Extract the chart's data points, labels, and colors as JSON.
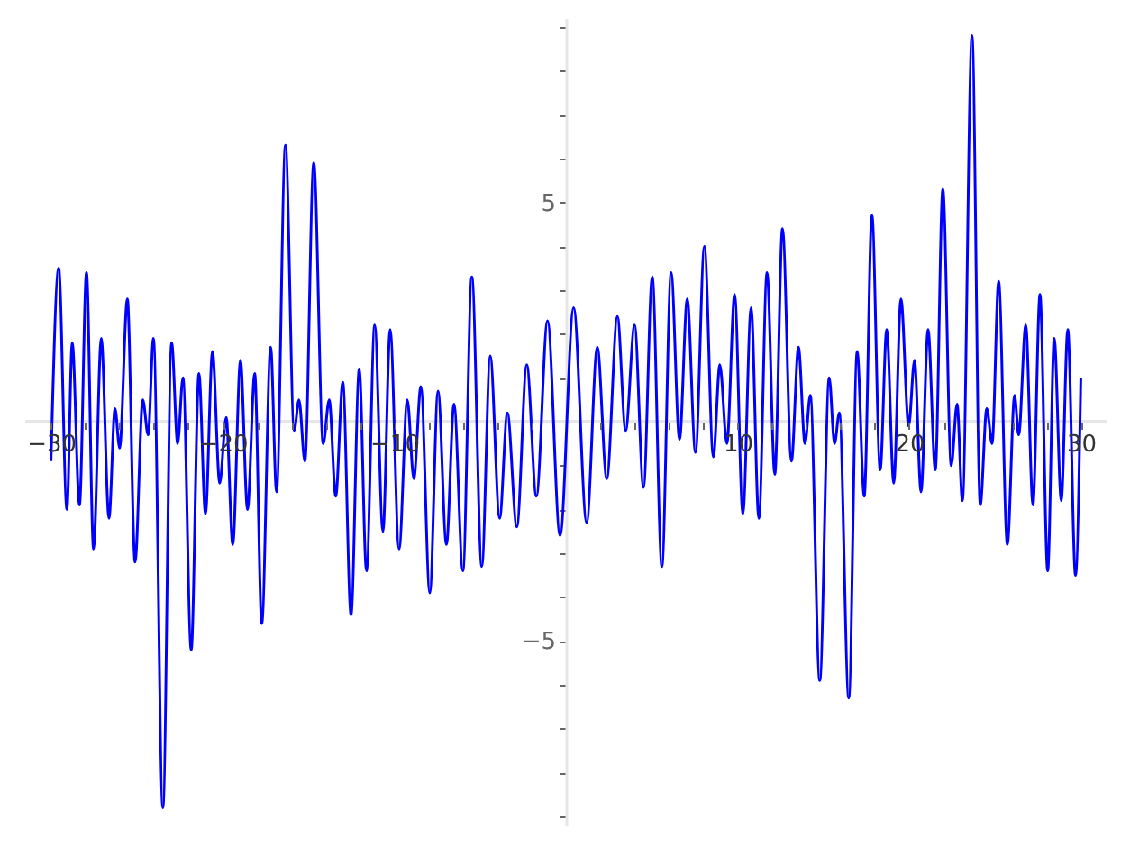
{
  "chart_data": {
    "type": "line",
    "x": [
      -30,
      -29.55,
      -29.07,
      -28.76,
      -28.34,
      -27.93,
      -27.52,
      -27.07,
      -26.62,
      -26.27,
      -26.0,
      -25.55,
      -25.1,
      -24.65,
      -24.34,
      -24.03,
      -23.48,
      -22.97,
      -22.62,
      -22.31,
      -21.83,
      -21.38,
      -21.0,
      -20.59,
      -20.17,
      -19.79,
      -19.41,
      -18.96,
      -18.55,
      -18.13,
      -17.72,
      -17.2,
      -16.86,
      -16.34,
      -15.83,
      -15.55,
      -15.21,
      -14.69,
      -14.14,
      -13.79,
      -13.41,
      -13.0,
      -12.52,
      -12.04,
      -11.62,
      -11.14,
      -10.66,
      -10.24,
      -9.72,
      -9.24,
      -8.86,
      -8.45,
      -7.93,
      -7.45,
      -6.96,
      -6.52,
      -6.0,
      -5.48,
      -4.9,
      -4.41,
      -3.86,
      -3.41,
      -2.86,
      -2.28,
      -1.72,
      -1.07,
      -0.34,
      0.45,
      1.21,
      1.83,
      2.38,
      3.0,
      3.48,
      4.0,
      4.52,
      5.03,
      5.59,
      6.13,
      6.62,
      7.07,
      7.55,
      8.07,
      8.59,
      8.97,
      9.38,
      9.83,
      10.31,
      10.79,
      11.24,
      11.72,
      12.17,
      12.62,
      13.14,
      13.55,
      13.93,
      14.24,
      14.79,
      15.34,
      15.65,
      15.93,
      16.48,
      16.97,
      17.38,
      17.83,
      18.31,
      18.69,
      19.1,
      19.52,
      19.97,
      20.31,
      20.69,
      21.1,
      21.52,
      21.96,
      22.45,
      22.79,
      23.1,
      23.66,
      24.14,
      24.52,
      24.83,
      25.21,
      25.72,
      26.14,
      26.38,
      26.79,
      27.21,
      27.62,
      28.07,
      28.45,
      28.86,
      29.24,
      29.69,
      30.0
    ],
    "series": [
      {
        "color": "#0000ff",
        "values": [
          -0.9,
          3.5,
          -2.0,
          1.8,
          -1.9,
          3.4,
          -2.9,
          1.9,
          -2.2,
          0.3,
          -0.6,
          2.8,
          -3.2,
          0.5,
          -0.3,
          1.9,
          -8.8,
          1.8,
          -0.5,
          1.0,
          -5.2,
          1.1,
          -2.1,
          1.6,
          -1.4,
          0.1,
          -2.8,
          1.4,
          -2.0,
          1.1,
          -4.6,
          1.7,
          -1.6,
          6.3,
          -0.2,
          0.5,
          -0.9,
          5.9,
          -0.5,
          0.5,
          -1.7,
          0.9,
          -4.4,
          1.2,
          -3.4,
          2.2,
          -2.5,
          2.1,
          -2.9,
          0.5,
          -1.3,
          0.8,
          -3.9,
          0.7,
          -2.8,
          0.4,
          -3.4,
          3.3,
          -3.3,
          1.5,
          -2.2,
          0.2,
          -2.4,
          1.3,
          -1.7,
          2.3,
          -2.6,
          2.6,
          -2.3,
          1.7,
          -1.3,
          2.4,
          -0.2,
          2.2,
          -1.5,
          3.3,
          -3.3,
          3.4,
          -0.4,
          2.8,
          -0.7,
          4.0,
          -0.8,
          1.3,
          -0.5,
          2.9,
          -2.1,
          2.6,
          -2.2,
          3.4,
          -1.2,
          4.4,
          -0.9,
          1.7,
          -0.5,
          0.6,
          -5.9,
          1.0,
          -0.5,
          0.2,
          -6.3,
          1.6,
          -1.7,
          4.7,
          -1.1,
          2.1,
          -1.4,
          2.8,
          -0.1,
          1.4,
          -1.6,
          2.1,
          -1.1,
          5.3,
          -1.0,
          0.4,
          -1.8,
          8.8,
          -1.9,
          0.3,
          -0.5,
          3.2,
          -2.8,
          0.6,
          -0.3,
          2.2,
          -1.9,
          2.9,
          -3.4,
          1.9,
          -1.8,
          2.1,
          -3.5,
          1.0
        ]
      }
    ],
    "xlim": [
      -31.5,
      31.5
    ],
    "ylim": [
      -9.2,
      9.2
    ],
    "xticks": [
      {
        "value": -30,
        "label": "−30"
      },
      {
        "value": -28,
        "label": null
      },
      {
        "value": -26,
        "label": null
      },
      {
        "value": -24,
        "label": null
      },
      {
        "value": -22,
        "label": null
      },
      {
        "value": -20,
        "label": "−20"
      },
      {
        "value": -18,
        "label": null
      },
      {
        "value": -16,
        "label": null
      },
      {
        "value": -14,
        "label": null
      },
      {
        "value": -12,
        "label": null
      },
      {
        "value": -10,
        "label": "−10"
      },
      {
        "value": -8,
        "label": null
      },
      {
        "value": -6,
        "label": null
      },
      {
        "value": -4,
        "label": null
      },
      {
        "value": -2,
        "label": null
      },
      {
        "value": 2,
        "label": null
      },
      {
        "value": 4,
        "label": null
      },
      {
        "value": 6,
        "label": null
      },
      {
        "value": 8,
        "label": null
      },
      10,
      {
        "value": 12,
        "label": null
      },
      {
        "value": 14,
        "label": null
      },
      {
        "value": 16,
        "label": null
      },
      {
        "value": 18,
        "label": null
      },
      20,
      {
        "value": 22,
        "label": null
      },
      {
        "value": 24,
        "label": null
      },
      {
        "value": 26,
        "label": null
      },
      {
        "value": 28,
        "label": null
      },
      30
    ],
    "yticks": [
      {
        "value": -9,
        "label": null
      },
      {
        "value": -8,
        "label": null
      },
      {
        "value": -7,
        "label": null
      },
      {
        "value": -6,
        "label": null
      },
      {
        "value": -5,
        "label": "−5"
      },
      {
        "value": -4,
        "label": null
      },
      {
        "value": -3,
        "label": null
      },
      {
        "value": -2,
        "label": null
      },
      {
        "value": -1,
        "label": null
      },
      {
        "value": 1,
        "label": null
      },
      {
        "value": 2,
        "label": null
      },
      {
        "value": 3,
        "label": null
      },
      {
        "value": 4,
        "label": null
      },
      5,
      {
        "value": 6,
        "label": null
      },
      {
        "value": 7,
        "label": null
      },
      {
        "value": 8,
        "label": null
      },
      {
        "value": 9,
        "label": null
      }
    ],
    "grid": false,
    "marker": "none",
    "line_style": "solid"
  }
}
